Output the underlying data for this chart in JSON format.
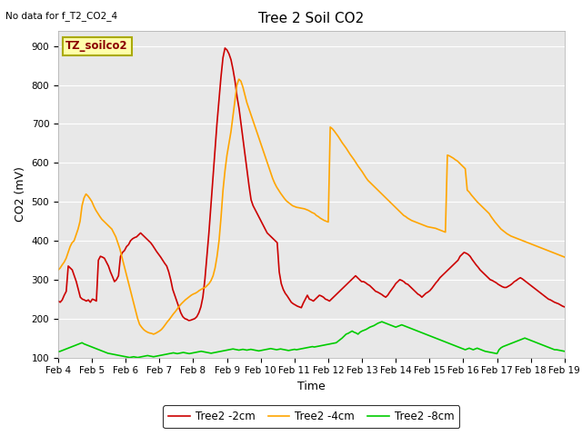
{
  "title": "Tree 2 Soil CO2",
  "top_left_text": "No data for f_T2_CO2_4",
  "xlabel": "Time",
  "ylabel": "CO2 (mV)",
  "ylim": [
    100,
    940
  ],
  "yticks": [
    100,
    200,
    300,
    400,
    500,
    600,
    700,
    800,
    900
  ],
  "bg_color": "#e8e8e8",
  "legend_box_label": "TZ_soilco2",
  "series": {
    "red": {
      "label": "Tree2 -2cm",
      "color": "#cc0000",
      "lw": 1.2
    },
    "orange": {
      "label": "Tree2 -4cm",
      "color": "#ffa500",
      "lw": 1.2
    },
    "green": {
      "label": "Tree2 -8cm",
      "color": "#00cc00",
      "lw": 1.2
    }
  },
  "xtick_labels": [
    "Feb 4",
    "Feb 5",
    "Feb 6",
    "Feb 7",
    "Feb 8",
    "Feb 9",
    "Feb 10",
    "Feb 11",
    "Feb 12",
    "Feb 13",
    "Feb 14",
    "Feb 15",
    "Feb 16",
    "Feb 17",
    "Feb 18",
    "Feb 19"
  ],
  "red_y": [
    245,
    242,
    248,
    260,
    270,
    335,
    330,
    325,
    310,
    295,
    275,
    255,
    250,
    248,
    245,
    248,
    242,
    250,
    248,
    245,
    350,
    360,
    358,
    355,
    345,
    335,
    320,
    308,
    295,
    300,
    310,
    360,
    370,
    375,
    385,
    390,
    400,
    405,
    408,
    410,
    415,
    420,
    415,
    410,
    405,
    400,
    395,
    388,
    380,
    372,
    365,
    358,
    350,
    342,
    335,
    320,
    300,
    275,
    260,
    245,
    230,
    215,
    205,
    200,
    198,
    195,
    196,
    198,
    200,
    205,
    215,
    230,
    255,
    300,
    360,
    420,
    490,
    560,
    630,
    700,
    760,
    820,
    870,
    895,
    890,
    880,
    865,
    840,
    810,
    770,
    740,
    700,
    660,
    620,
    580,
    540,
    505,
    490,
    480,
    470,
    460,
    450,
    440,
    430,
    420,
    415,
    410,
    405,
    400,
    395,
    320,
    290,
    275,
    265,
    258,
    250,
    242,
    238,
    235,
    232,
    230,
    228,
    240,
    250,
    260,
    250,
    248,
    245,
    250,
    255,
    260,
    258,
    255,
    250,
    248,
    245,
    250,
    255,
    260,
    265,
    270,
    275,
    280,
    285,
    290,
    295,
    300,
    305,
    310,
    305,
    300,
    295,
    295,
    292,
    288,
    285,
    280,
    275,
    270,
    268,
    265,
    262,
    258,
    255,
    260,
    268,
    275,
    282,
    290,
    295,
    300,
    298,
    295,
    290,
    288,
    283,
    278,
    273,
    268,
    263,
    260,
    255,
    260,
    265,
    268,
    272,
    278,
    285,
    292,
    298,
    305,
    310,
    315,
    320,
    325,
    330,
    335,
    340,
    345,
    350,
    360,
    365,
    370,
    368,
    365,
    360,
    352,
    345,
    338,
    332,
    325,
    320,
    315,
    310,
    305,
    300,
    298,
    295,
    292,
    288,
    285,
    282,
    280,
    280,
    283,
    286,
    290,
    295,
    298,
    302,
    305,
    302,
    298,
    294,
    290,
    286,
    282,
    278,
    274,
    270,
    266,
    262,
    258,
    254,
    250,
    248,
    245,
    242,
    240,
    238,
    235,
    232,
    230
  ],
  "orange_y": [
    325,
    330,
    338,
    345,
    355,
    370,
    385,
    395,
    400,
    415,
    430,
    450,
    490,
    510,
    520,
    515,
    508,
    500,
    488,
    478,
    470,
    462,
    455,
    450,
    445,
    440,
    435,
    430,
    420,
    410,
    395,
    380,
    360,
    340,
    320,
    300,
    280,
    260,
    240,
    220,
    200,
    185,
    178,
    172,
    168,
    165,
    163,
    162,
    160,
    162,
    165,
    168,
    172,
    178,
    185,
    192,
    198,
    205,
    212,
    218,
    225,
    232,
    238,
    243,
    248,
    252,
    256,
    260,
    263,
    265,
    268,
    272,
    275,
    278,
    280,
    285,
    290,
    298,
    310,
    330,
    360,
    400,
    460,
    530,
    580,
    620,
    650,
    680,
    720,
    760,
    800,
    815,
    810,
    795,
    775,
    755,
    740,
    725,
    710,
    695,
    680,
    665,
    650,
    635,
    620,
    605,
    590,
    575,
    560,
    548,
    538,
    530,
    522,
    515,
    508,
    502,
    498,
    494,
    490,
    488,
    486,
    485,
    484,
    483,
    482,
    480,
    478,
    475,
    472,
    470,
    465,
    462,
    458,
    455,
    452,
    450,
    448,
    692,
    688,
    682,
    675,
    668,
    660,
    652,
    645,
    638,
    630,
    622,
    615,
    608,
    600,
    592,
    585,
    578,
    570,
    562,
    555,
    550,
    545,
    540,
    535,
    530,
    525,
    520,
    515,
    510,
    505,
    500,
    495,
    490,
    485,
    480,
    475,
    470,
    465,
    462,
    458,
    455,
    452,
    450,
    448,
    446,
    444,
    442,
    440,
    438,
    436,
    435,
    434,
    433,
    432,
    430,
    428,
    426,
    424,
    422,
    620,
    618,
    615,
    612,
    608,
    605,
    600,
    595,
    590,
    585,
    530,
    525,
    518,
    512,
    506,
    500,
    495,
    490,
    485,
    480,
    475,
    470,
    462,
    455,
    448,
    442,
    436,
    430,
    426,
    422,
    418,
    415,
    412,
    410,
    408,
    406,
    404,
    402,
    400,
    398,
    396,
    394,
    392,
    390,
    388,
    386,
    384,
    382,
    380,
    378,
    376,
    374,
    372,
    370,
    368,
    366,
    364,
    362,
    360,
    358
  ],
  "green_y": [
    115,
    116,
    118,
    120,
    122,
    124,
    126,
    128,
    130,
    132,
    134,
    136,
    138,
    135,
    133,
    131,
    129,
    127,
    125,
    123,
    121,
    119,
    117,
    115,
    113,
    111,
    110,
    109,
    108,
    107,
    106,
    105,
    104,
    103,
    102,
    101,
    100,
    101,
    102,
    101,
    100,
    101,
    102,
    103,
    104,
    105,
    104,
    103,
    102,
    103,
    104,
    105,
    106,
    107,
    108,
    109,
    110,
    111,
    112,
    111,
    110,
    111,
    112,
    113,
    112,
    111,
    110,
    111,
    112,
    113,
    114,
    115,
    116,
    115,
    114,
    113,
    112,
    111,
    112,
    113,
    114,
    115,
    116,
    117,
    118,
    119,
    120,
    121,
    122,
    121,
    120,
    119,
    120,
    121,
    120,
    119,
    120,
    121,
    120,
    119,
    118,
    117,
    118,
    119,
    120,
    121,
    122,
    123,
    122,
    121,
    120,
    121,
    122,
    121,
    120,
    119,
    118,
    119,
    120,
    121,
    120,
    121,
    122,
    123,
    124,
    125,
    126,
    127,
    128,
    127,
    128,
    129,
    130,
    131,
    132,
    133,
    134,
    135,
    136,
    137,
    138,
    142,
    146,
    150,
    155,
    160,
    162,
    165,
    168,
    165,
    163,
    160,
    165,
    168,
    170,
    172,
    175,
    178,
    180,
    182,
    185,
    188,
    190,
    192,
    190,
    188,
    186,
    184,
    182,
    180,
    178,
    180,
    182,
    184,
    182,
    180,
    178,
    176,
    174,
    172,
    170,
    168,
    166,
    164,
    162,
    160,
    158,
    156,
    154,
    152,
    150,
    148,
    146,
    144,
    142,
    140,
    138,
    136,
    134,
    132,
    130,
    128,
    126,
    124,
    122,
    120,
    122,
    124,
    122,
    120,
    122,
    124,
    122,
    120,
    118,
    116,
    115,
    114,
    113,
    112,
    111,
    110,
    120,
    125,
    128,
    130,
    132,
    134,
    136,
    138,
    140,
    142,
    144,
    146,
    148,
    150,
    148,
    146,
    144,
    142,
    140,
    138,
    136,
    134,
    132,
    130,
    128,
    126,
    124,
    122,
    120,
    120,
    119,
    118,
    117,
    116
  ]
}
